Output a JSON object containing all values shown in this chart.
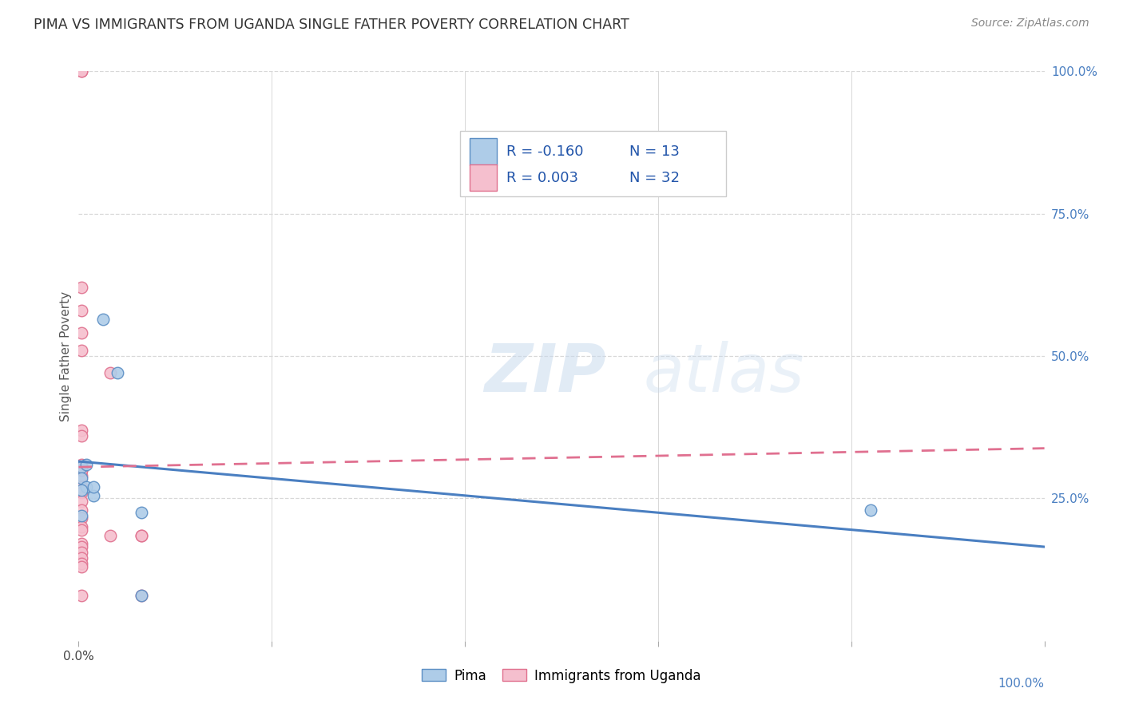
{
  "title": "PIMA VS IMMIGRANTS FROM UGANDA SINGLE FATHER POVERTY CORRELATION CHART",
  "source": "Source: ZipAtlas.com",
  "ylabel": "Single Father Poverty",
  "ylabel_right_labels": [
    "100.0%",
    "75.0%",
    "50.0%",
    "25.0%"
  ],
  "ylabel_right_values": [
    1.0,
    0.75,
    0.5,
    0.25
  ],
  "legend_labels": [
    "Pima",
    "Immigrants from Uganda"
  ],
  "legend_R": [
    "-0.160",
    "0.003"
  ],
  "legend_N": [
    13,
    32
  ],
  "watermark_zip": "ZIP",
  "watermark_atlas": "atlas",
  "pima_color": "#aecce8",
  "pima_edge_color": "#5b8ec4",
  "uganda_color": "#f5bfce",
  "uganda_edge_color": "#e0708e",
  "pima_line_color": "#4a7fc1",
  "uganda_line_color": "#e07090",
  "pima_scatter_x": [
    0.003,
    0.025,
    0.04,
    0.003,
    0.008,
    0.008,
    0.003,
    0.015,
    0.015,
    0.003,
    0.065,
    0.065,
    0.82
  ],
  "pima_scatter_y": [
    0.305,
    0.565,
    0.47,
    0.285,
    0.31,
    0.27,
    0.265,
    0.255,
    0.27,
    0.22,
    0.225,
    0.08,
    0.23
  ],
  "uganda_scatter_x": [
    0.003,
    0.003,
    0.003,
    0.003,
    0.003,
    0.003,
    0.003,
    0.003,
    0.003,
    0.003,
    0.003,
    0.003,
    0.003,
    0.003,
    0.003,
    0.003,
    0.003,
    0.003,
    0.003,
    0.003,
    0.003,
    0.003,
    0.003,
    0.003,
    0.003,
    0.033,
    0.033,
    0.065,
    0.065,
    0.065,
    0.003,
    0.003
  ],
  "uganda_scatter_y": [
    1.0,
    1.0,
    0.62,
    0.58,
    0.54,
    0.51,
    0.37,
    0.31,
    0.305,
    0.3,
    0.29,
    0.27,
    0.26,
    0.245,
    0.23,
    0.215,
    0.2,
    0.195,
    0.17,
    0.165,
    0.155,
    0.145,
    0.135,
    0.13,
    0.08,
    0.47,
    0.185,
    0.185,
    0.185,
    0.08,
    0.36,
    0.3
  ],
  "pima_trend_x": [
    0.0,
    1.0
  ],
  "pima_trend_y": [
    0.315,
    0.165
  ],
  "uganda_trend_x": [
    0.0,
    1.0
  ],
  "uganda_trend_y": [
    0.305,
    0.338
  ],
  "grid_color": "#d8d8d8",
  "background_color": "#ffffff",
  "ylim": [
    0.0,
    1.0
  ],
  "xlim": [
    0.0,
    1.0
  ],
  "marker_size": 110
}
